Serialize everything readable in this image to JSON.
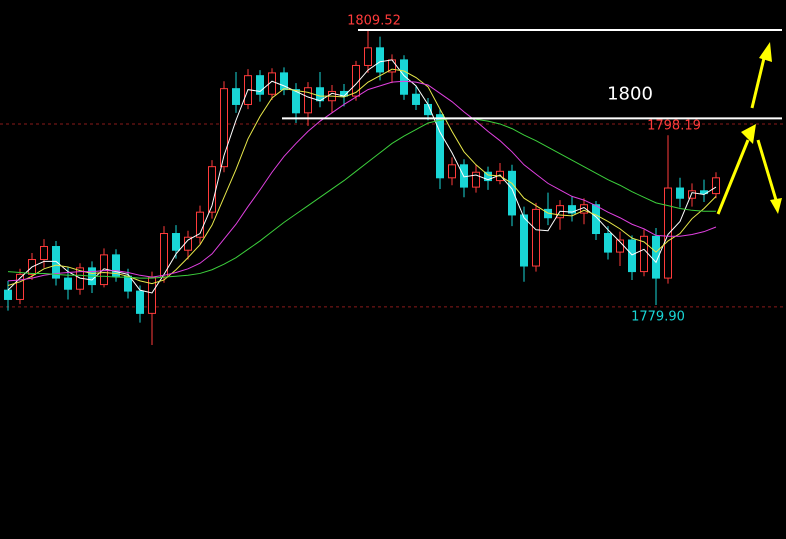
{
  "chart_data": {
    "type": "candlestick",
    "ylim": [
      1754.7,
      1812.75
    ],
    "open": [
      1781.5,
      1780.5,
      1783.2,
      1784.8,
      1786.2,
      1782.8,
      1781.6,
      1783.9,
      1782.1,
      1785.3,
      1783.0,
      1781.4,
      1779.0,
      1782.9,
      1787.6,
      1785.8,
      1787.2,
      1789.9,
      1794.8,
      1803.2,
      1801.5,
      1804.6,
      1802.6,
      1804.9,
      1803.1,
      1800.6,
      1803.3,
      1801.9,
      1802.9,
      1802.4,
      1805.7,
      1807.6,
      1805.0,
      1806.3,
      1802.6,
      1801.5,
      1800.4,
      1793.6,
      1795.0,
      1792.6,
      1794.2,
      1793.3,
      1794.3,
      1789.6,
      1784.1,
      1790.2,
      1789.3,
      1790.6,
      1789.8,
      1790.7,
      1787.6,
      1785.6,
      1786.9,
      1783.5,
      1787.3,
      1782.8,
      1792.5,
      1791.4,
      1792.2,
      1791.9
    ],
    "high": [
      1782.5,
      1783.8,
      1785.5,
      1787.0,
      1786.8,
      1784.0,
      1784.4,
      1784.6,
      1786.0,
      1785.9,
      1783.8,
      1782.0,
      1783.5,
      1788.4,
      1788.5,
      1787.9,
      1790.6,
      1795.5,
      1804.0,
      1805.0,
      1805.3,
      1805.2,
      1805.4,
      1805.5,
      1803.8,
      1803.9,
      1805.0,
      1803.6,
      1803.7,
      1806.2,
      1809.52,
      1808.8,
      1806.9,
      1806.8,
      1803.5,
      1802.2,
      1801.0,
      1795.8,
      1795.6,
      1795.0,
      1794.8,
      1795.2,
      1795.0,
      1790.5,
      1790.9,
      1792.0,
      1791.2,
      1791.6,
      1791.4,
      1791.1,
      1788.4,
      1787.8,
      1787.4,
      1788.0,
      1788.2,
      1798.19,
      1793.6,
      1793.0,
      1793.4,
      1794.2
    ],
    "low": [
      1779.3,
      1780.0,
      1782.6,
      1783.9,
      1782.0,
      1780.5,
      1781.0,
      1781.2,
      1781.8,
      1782.4,
      1780.6,
      1778.0,
      1775.6,
      1782.3,
      1784.9,
      1784.8,
      1786.5,
      1789.2,
      1794.2,
      1800.6,
      1801.0,
      1801.8,
      1802.0,
      1802.5,
      1799.5,
      1799.2,
      1801.2,
      1800.6,
      1801.3,
      1801.9,
      1804.9,
      1804.1,
      1803.8,
      1802.0,
      1800.9,
      1799.8,
      1792.4,
      1792.8,
      1791.5,
      1792.0,
      1792.3,
      1792.9,
      1788.4,
      1782.4,
      1783.5,
      1788.5,
      1788.0,
      1788.9,
      1788.6,
      1786.9,
      1784.8,
      1784.1,
      1782.6,
      1783.0,
      1779.9,
      1782.2,
      1790.4,
      1790.5,
      1791.0,
      1791.4
    ],
    "close": [
      1780.5,
      1783.2,
      1784.8,
      1786.2,
      1782.8,
      1781.6,
      1783.9,
      1782.1,
      1785.3,
      1783.0,
      1781.4,
      1779.0,
      1782.9,
      1787.6,
      1785.8,
      1787.2,
      1789.9,
      1794.8,
      1803.2,
      1801.5,
      1804.6,
      1802.6,
      1804.9,
      1803.1,
      1800.6,
      1803.3,
      1801.9,
      1802.9,
      1802.4,
      1805.7,
      1807.6,
      1805.0,
      1806.3,
      1802.6,
      1801.5,
      1800.4,
      1793.6,
      1795.0,
      1792.6,
      1794.2,
      1793.3,
      1794.3,
      1789.6,
      1784.1,
      1790.2,
      1789.3,
      1790.6,
      1789.8,
      1790.7,
      1787.6,
      1785.6,
      1786.9,
      1783.5,
      1787.3,
      1782.8,
      1792.5,
      1791.4,
      1792.2,
      1791.9,
      1793.6
    ],
    "up_color": "#ff3b3b",
    "down_color": "#19d6d6",
    "value_labels": {
      "high": {
        "30": "1809.52",
        "55": "1798.19"
      },
      "low": {
        "54": "1779.90"
      }
    },
    "ma": [
      {
        "color": "#ffffff",
        "values": [
          1781.5,
          1782.8,
          1784.0,
          1784.6,
          1784.6,
          1783.5,
          1782.8,
          1782.6,
          1783.8,
          1783.5,
          1783.2,
          1781.5,
          1781.2,
          1783.2,
          1785.4,
          1786.9,
          1787.6,
          1790.6,
          1796.0,
          1799.8,
          1803.1,
          1802.9,
          1804.0,
          1803.5,
          1802.9,
          1802.3,
          1801.9,
          1802.7,
          1802.4,
          1803.7,
          1805.2,
          1806.1,
          1806.3,
          1804.6,
          1803.5,
          1801.5,
          1798.5,
          1796.3,
          1793.7,
          1793.9,
          1793.4,
          1793.9,
          1792.4,
          1789.3,
          1788.0,
          1787.9,
          1790.0,
          1789.9,
          1790.4,
          1789.4,
          1788.0,
          1786.7,
          1785.3,
          1785.9,
          1784.5,
          1787.5,
          1788.9,
          1792.0,
          1791.8,
          1792.6
        ]
      },
      {
        "color": "#e8e84a",
        "values": [
          1782.0,
          1782.4,
          1783.0,
          1783.8,
          1784.2,
          1784.0,
          1783.6,
          1783.3,
          1783.4,
          1783.3,
          1783.0,
          1782.5,
          1782.2,
          1782.6,
          1783.7,
          1785.0,
          1786.4,
          1788.5,
          1791.5,
          1794.5,
          1797.8,
          1800.2,
          1802.2,
          1803.2,
          1803.0,
          1802.8,
          1802.4,
          1802.4,
          1802.3,
          1802.8,
          1803.9,
          1804.6,
          1805.3,
          1805.1,
          1804.4,
          1803.4,
          1801.0,
          1798.6,
          1796.4,
          1795.0,
          1793.9,
          1793.8,
          1793.0,
          1791.4,
          1790.6,
          1789.8,
          1789.6,
          1789.5,
          1790.1,
          1789.6,
          1788.9,
          1788.1,
          1787.1,
          1786.7,
          1785.6,
          1786.8,
          1787.6,
          1789.2,
          1790.3,
          1791.6
        ]
      },
      {
        "color": "#e040e0",
        "values": [
          1782.5,
          1782.6,
          1782.8,
          1783.1,
          1783.3,
          1783.4,
          1783.5,
          1783.5,
          1783.6,
          1783.6,
          1783.4,
          1783.1,
          1782.9,
          1783.1,
          1783.4,
          1783.8,
          1784.4,
          1785.4,
          1787.0,
          1788.6,
          1790.5,
          1792.3,
          1794.2,
          1795.9,
          1797.3,
          1798.6,
          1799.7,
          1800.6,
          1801.5,
          1802.3,
          1803.1,
          1803.5,
          1803.9,
          1804.0,
          1803.9,
          1803.6,
          1802.7,
          1801.8,
          1800.7,
          1799.7,
          1798.6,
          1797.6,
          1796.4,
          1795.0,
          1794.0,
          1793.0,
          1792.3,
          1791.6,
          1791.2,
          1790.6,
          1789.9,
          1789.3,
          1788.6,
          1788.1,
          1787.4,
          1787.3,
          1787.3,
          1787.5,
          1787.8,
          1788.3
        ]
      },
      {
        "color": "#3ccf3c",
        "values": [
          1783.5,
          1783.4,
          1783.3,
          1783.3,
          1783.2,
          1783.1,
          1783.1,
          1783.0,
          1783.0,
          1782.9,
          1782.9,
          1782.8,
          1782.8,
          1782.9,
          1783.0,
          1783.1,
          1783.3,
          1783.7,
          1784.3,
          1785.0,
          1785.9,
          1786.8,
          1787.8,
          1788.8,
          1789.7,
          1790.6,
          1791.5,
          1792.4,
          1793.3,
          1794.3,
          1795.3,
          1796.3,
          1797.3,
          1798.1,
          1798.8,
          1799.5,
          1799.8,
          1800.0,
          1800.0,
          1799.9,
          1799.7,
          1799.4,
          1798.9,
          1798.2,
          1797.6,
          1796.9,
          1796.2,
          1795.5,
          1794.8,
          1794.1,
          1793.4,
          1792.8,
          1792.1,
          1791.5,
          1790.9,
          1790.6,
          1790.3,
          1790.1,
          1790.0,
          1790.0
        ]
      }
    ],
    "levels": [
      1809.52,
      1800
    ],
    "level_color": "#ffffff",
    "guides": [
      1799.4,
      1779.7
    ],
    "guide_color": "#8a1a1a"
  }
}
